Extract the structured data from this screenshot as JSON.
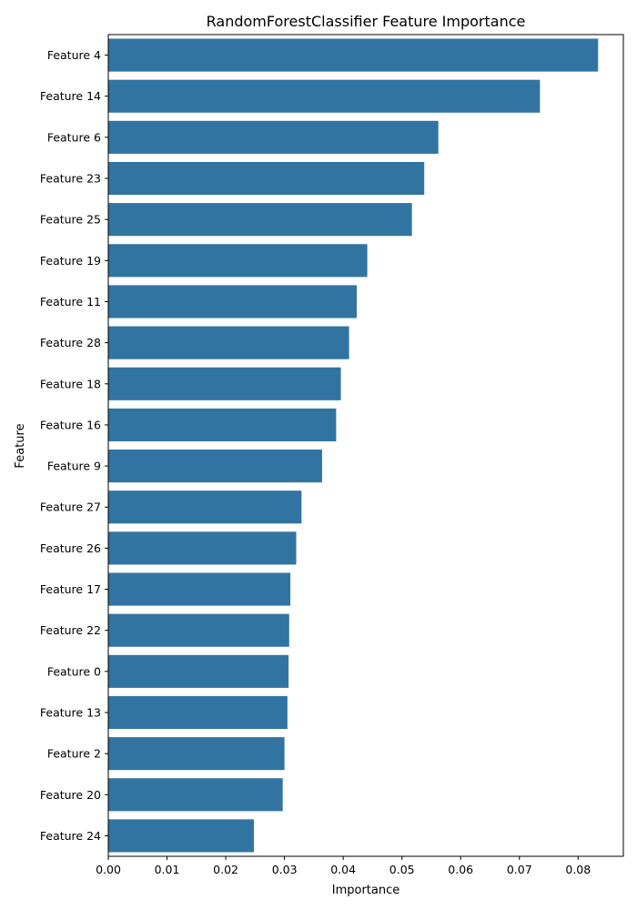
{
  "chart_data": {
    "type": "bar",
    "orientation": "horizontal",
    "title": "RandomForestClassifier Feature Importance",
    "xlabel": "Importance",
    "ylabel": "Feature",
    "categories": [
      "Feature 4",
      "Feature 14",
      "Feature 6",
      "Feature 23",
      "Feature 25",
      "Feature 19",
      "Feature 11",
      "Feature 28",
      "Feature 18",
      "Feature 16",
      "Feature 9",
      "Feature 27",
      "Feature 26",
      "Feature 17",
      "Feature 22",
      "Feature 0",
      "Feature 13",
      "Feature 2",
      "Feature 20",
      "Feature 24"
    ],
    "values": [
      0.0834,
      0.0735,
      0.0562,
      0.0538,
      0.0517,
      0.0441,
      0.0423,
      0.041,
      0.0396,
      0.0388,
      0.0364,
      0.0329,
      0.032,
      0.031,
      0.0308,
      0.0307,
      0.0305,
      0.03,
      0.0297,
      0.0248
    ],
    "xlim": [
      0,
      0.0877
    ],
    "xticks": [
      0.0,
      0.01,
      0.02,
      0.03,
      0.04,
      0.05,
      0.06,
      0.07,
      0.08
    ],
    "xtick_labels": [
      "0.00",
      "0.01",
      "0.02",
      "0.03",
      "0.04",
      "0.05",
      "0.06",
      "0.07",
      "0.08"
    ],
    "bar_color": "#3274a1",
    "grid": false,
    "legend": "none"
  }
}
